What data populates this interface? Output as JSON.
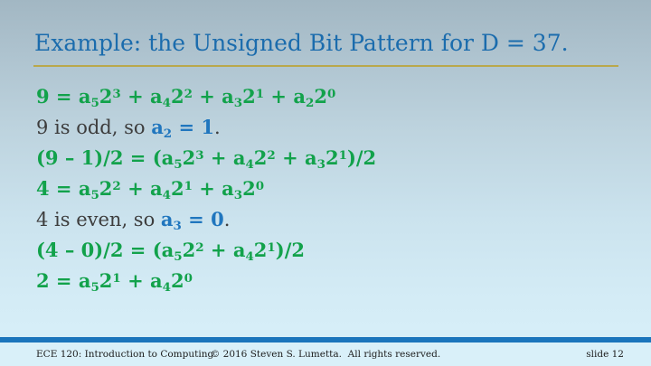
{
  "title": "Example: the Unsigned Bit Pattern for D = 37.",
  "colors": {
    "title_blue": "#1b6cad",
    "rule_gold": "#b9a84c",
    "math_green": "#12a24b",
    "body_dark": "#3d3d3d",
    "accent_blue": "#2076be",
    "footer_bar_blue": "#1b75bc",
    "footer_bg": "#d9f0f9",
    "background_top": "#a2b7c3",
    "background_bottom": "#d8f0fa"
  },
  "body": {
    "lines": [
      {
        "parts": [
          {
            "style": "green",
            "tokens": [
              {
                "text": "9 = a"
              },
              {
                "sub": "5"
              },
              {
                "text": "2"
              },
              {
                "sup": "3"
              },
              {
                "text": " + a"
              },
              {
                "sub": "4"
              },
              {
                "text": "2"
              },
              {
                "sup": "2"
              },
              {
                "text": " + a"
              },
              {
                "sub": "3"
              },
              {
                "text": "2"
              },
              {
                "sup": "1"
              },
              {
                "text": " + a"
              },
              {
                "sub": "2"
              },
              {
                "text": "2"
              },
              {
                "sup": "0"
              }
            ]
          }
        ]
      },
      {
        "parts": [
          {
            "style": "dark",
            "tokens": [
              {
                "text": "9 is odd, so "
              }
            ]
          },
          {
            "style": "blue",
            "tokens": [
              {
                "text": "a"
              },
              {
                "sub": "2"
              },
              {
                "text": " = 1"
              }
            ]
          },
          {
            "style": "dark",
            "tokens": [
              {
                "text": "."
              }
            ]
          }
        ]
      },
      {
        "parts": [
          {
            "style": "green",
            "tokens": [
              {
                "text": "(9 – 1)/2 = (a"
              },
              {
                "sub": "5"
              },
              {
                "text": "2"
              },
              {
                "sup": "3"
              },
              {
                "text": " + a"
              },
              {
                "sub": "4"
              },
              {
                "text": "2"
              },
              {
                "sup": "2"
              },
              {
                "text": " + a"
              },
              {
                "sub": "3"
              },
              {
                "text": "2"
              },
              {
                "sup": "1"
              },
              {
                "text": ")/2"
              }
            ]
          }
        ]
      },
      {
        "parts": [
          {
            "style": "green",
            "tokens": [
              {
                "text": "4 = a"
              },
              {
                "sub": "5"
              },
              {
                "text": "2"
              },
              {
                "sup": "2"
              },
              {
                "text": " + a"
              },
              {
                "sub": "4"
              },
              {
                "text": "2"
              },
              {
                "sup": "1"
              },
              {
                "text": " + a"
              },
              {
                "sub": "3"
              },
              {
                "text": "2"
              },
              {
                "sup": "0"
              }
            ]
          }
        ]
      },
      {
        "parts": [
          {
            "style": "dark",
            "tokens": [
              {
                "text": "4 is even, so "
              }
            ]
          },
          {
            "style": "blue",
            "tokens": [
              {
                "text": "a"
              },
              {
                "sub": "3"
              },
              {
                "text": " = 0"
              }
            ]
          },
          {
            "style": "dark",
            "tokens": [
              {
                "text": "."
              }
            ]
          }
        ]
      },
      {
        "parts": [
          {
            "style": "green",
            "tokens": [
              {
                "text": "(4 – 0)/2 = (a"
              },
              {
                "sub": "5"
              },
              {
                "text": "2"
              },
              {
                "sup": "2"
              },
              {
                "text": " + a"
              },
              {
                "sub": "4"
              },
              {
                "text": "2"
              },
              {
                "sup": "1"
              },
              {
                "text": ")/2"
              }
            ]
          }
        ]
      },
      {
        "parts": [
          {
            "style": "green",
            "tokens": [
              {
                "text": "2 = a"
              },
              {
                "sub": "5"
              },
              {
                "text": "2"
              },
              {
                "sup": "1"
              },
              {
                "text": " + a"
              },
              {
                "sub": "4"
              },
              {
                "text": "2"
              },
              {
                "sup": "0"
              }
            ]
          }
        ]
      }
    ]
  },
  "footer": {
    "left": "ECE 120: Introduction to Computing",
    "center": "© 2016 Steven S. Lumetta.  All rights reserved.",
    "right": "slide 12"
  }
}
